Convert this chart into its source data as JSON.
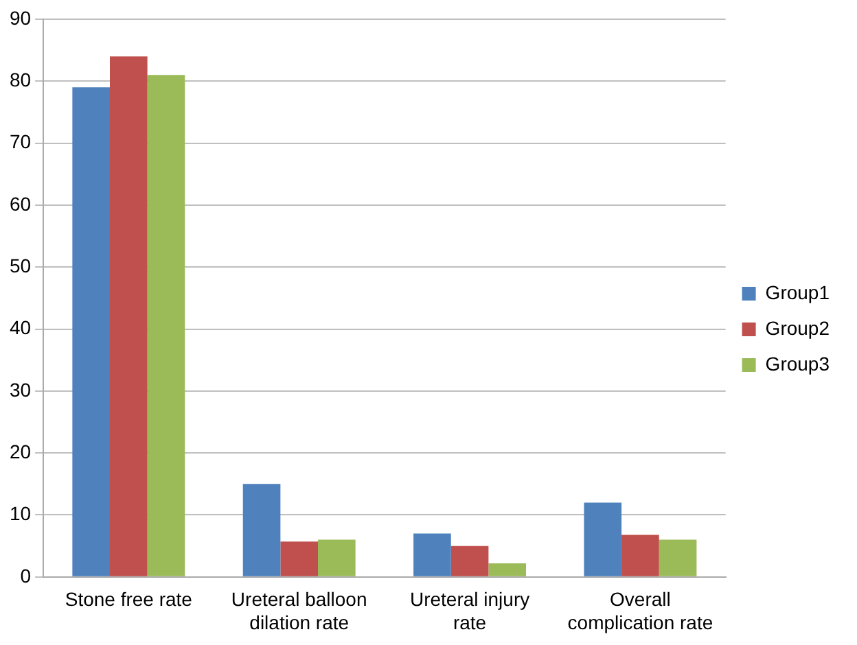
{
  "chart_data": {
    "type": "bar",
    "categories": [
      "Stone free rate",
      "Ureteral balloon dilation rate",
      "Ureteral injury rate",
      "Overall complication rate"
    ],
    "series": [
      {
        "name": "Group1",
        "color": "#4f81bd",
        "values": [
          79,
          15,
          7,
          12
        ]
      },
      {
        "name": "Group2",
        "color": "#c0504d",
        "values": [
          84,
          5.7,
          5,
          6.8
        ]
      },
      {
        "name": "Group3",
        "color": "#9bbb59",
        "values": [
          81,
          6,
          2.2,
          6
        ]
      }
    ],
    "ylim": [
      0,
      90
    ],
    "yticks": [
      0,
      10,
      20,
      30,
      40,
      50,
      60,
      70,
      80,
      90
    ],
    "grid": "y",
    "legend": "right"
  }
}
